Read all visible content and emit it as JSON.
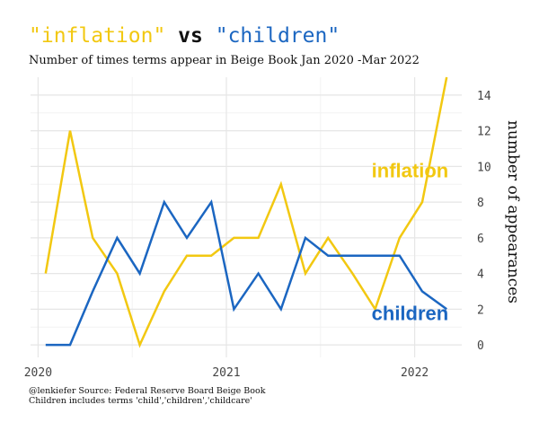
{
  "header": {
    "title_part1": "\"inflation\"",
    "title_part2": " vs ",
    "title_part3": "\"children\"",
    "subtitle": "Number of times terms appear in Beige Book Jan 2020 -Mar 2022"
  },
  "caption": {
    "line1": "@lenkiefer Source: Federal Reserve Board Beige Book",
    "line2": "Children includes terms 'child','children','childcare'"
  },
  "colors": {
    "inflation": "#F2C811",
    "children": "#1B66C1",
    "title_black": "#111111"
  },
  "chart_data": {
    "type": "line",
    "title": "\"inflation\" vs \"children\"",
    "subtitle": "Number of times terms appear in Beige Book Jan 2020 -Mar 2022",
    "xlabel": "",
    "ylabel": "number of appearances",
    "x": [
      2020.04,
      2020.17,
      2020.29,
      2020.42,
      2020.54,
      2020.67,
      2020.79,
      2020.92,
      2021.04,
      2021.17,
      2021.29,
      2021.42,
      2021.54,
      2021.67,
      2021.79,
      2021.92,
      2022.04,
      2022.17
    ],
    "xlim": [
      2019.96,
      2022.25
    ],
    "xticks": [
      2020,
      2021,
      2022
    ],
    "xtick_labels": [
      "2020",
      "2021",
      "2022"
    ],
    "ylim": [
      -0.7,
      15
    ],
    "yticks": [
      0,
      2,
      4,
      6,
      8,
      10,
      12,
      14
    ],
    "ytick_labels": [
      "0",
      "2",
      "4",
      "6",
      "8",
      "10",
      "12",
      "14"
    ],
    "grid": true,
    "legend": "direct labels at line ends",
    "series": [
      {
        "name": "inflation",
        "label": "inflation",
        "color": "#F2C811",
        "values": [
          4,
          12,
          6,
          4,
          0,
          3,
          5,
          5,
          6,
          6,
          9,
          4,
          6,
          4,
          2,
          6,
          8,
          15
        ]
      },
      {
        "name": "children",
        "label": "children",
        "color": "#1B66C1",
        "values": [
          0,
          0,
          3,
          6,
          4,
          8,
          6,
          8,
          2,
          4,
          2,
          6,
          5,
          5,
          5,
          5,
          3,
          2
        ]
      }
    ]
  }
}
